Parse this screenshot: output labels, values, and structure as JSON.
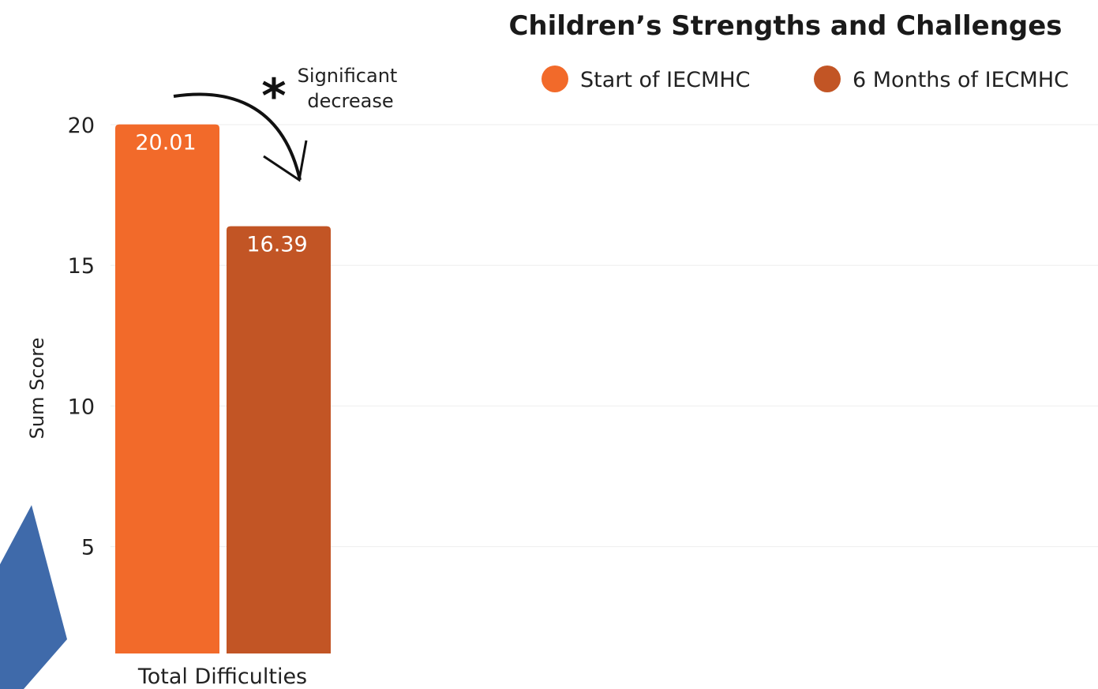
{
  "colors": {
    "start": "#f26a2a",
    "six_months": "#c25525",
    "decor": "#3f6aaa",
    "grid": "#eeeeee"
  },
  "chart_data": {
    "type": "bar",
    "title": "Children’s Strengths and Challenges",
    "ylabel": "Sum Score",
    "xlabel": "",
    "ylim": [
      1.2,
      20
    ],
    "yticks": [
      5,
      10,
      15,
      20
    ],
    "grid": true,
    "legend_position": "top-right",
    "categories": [
      "Total Difficulties"
    ],
    "series": [
      {
        "name": "Start of IECMHC",
        "values": [
          20.01
        ],
        "labels": [
          "20.01"
        ],
        "color": "#f26a2a"
      },
      {
        "name": "6 Months of IECMHC",
        "values": [
          16.39
        ],
        "labels": [
          "16.39"
        ],
        "color": "#c25525"
      }
    ],
    "annotation": {
      "symbol": "*",
      "lines": [
        "Significant",
        "decrease"
      ]
    }
  }
}
